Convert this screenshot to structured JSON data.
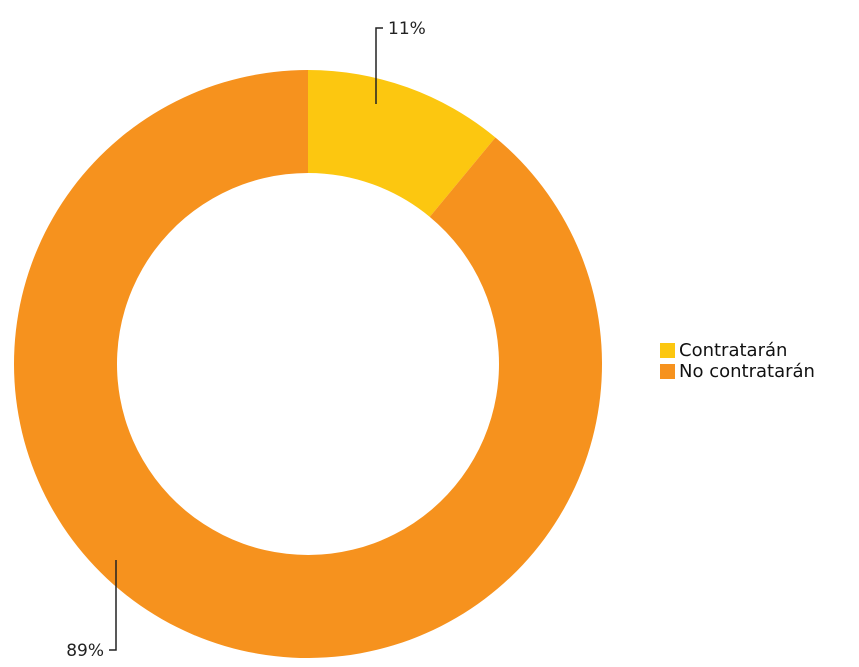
{
  "chart_data": {
    "type": "pie",
    "style": "donut",
    "categories": [
      "Contratarán",
      "No contratarán"
    ],
    "values": [
      11,
      89
    ],
    "data_labels": [
      "11%",
      "89%"
    ],
    "colors": [
      "#FCC710",
      "#F6921E"
    ],
    "legend_position": "right",
    "legend": [
      {
        "label": "Contratarán",
        "color": "#FCC710"
      },
      {
        "label": "No contratarán",
        "color": "#F6921E"
      }
    ]
  }
}
